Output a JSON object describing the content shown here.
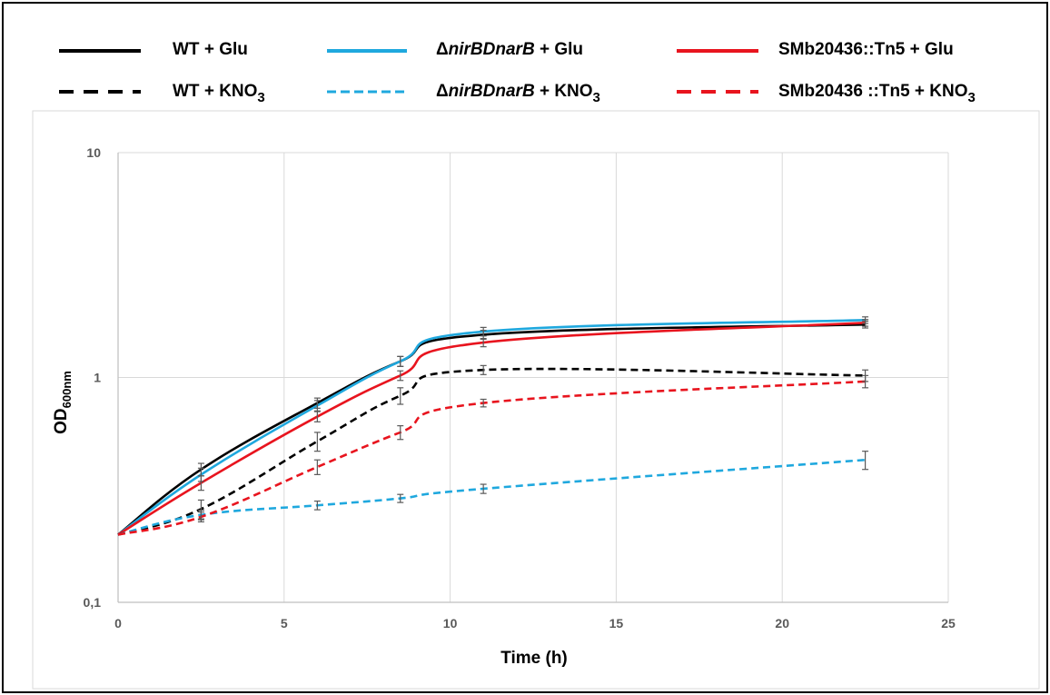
{
  "chart_data": {
    "type": "line",
    "title": "",
    "xlabel": "Time (h)",
    "ylabel": "OD",
    "ylabel_sub": "600nm",
    "x_scale": "linear",
    "y_scale": "log",
    "xlim": [
      0,
      25
    ],
    "ylim": [
      0.1,
      10
    ],
    "x_ticks": [
      0,
      5,
      10,
      15,
      20,
      25
    ],
    "x_tick_labels": [
      "0",
      "5",
      "10",
      "15",
      "20",
      "25"
    ],
    "y_ticks": [
      0.1,
      1,
      10
    ],
    "y_tick_labels": [
      "0,1",
      "1",
      "10"
    ],
    "grid": true,
    "legend_position": "top",
    "legend": [
      {
        "pre": "WT + Glu",
        "ital": "",
        "post": "",
        "sub": "",
        "tail": ""
      },
      {
        "pre": "Δ",
        "ital": "nirBDnarB",
        "post": " + Glu",
        "sub": "",
        "tail": ""
      },
      {
        "pre": "SMb20436::Tn5 + Glu",
        "ital": "",
        "post": "",
        "sub": "",
        "tail": ""
      },
      {
        "pre": "WT + KNO",
        "ital": "",
        "post": "",
        "sub": "3",
        "tail": ""
      },
      {
        "pre": "Δ",
        "ital": "nirBDnarB",
        "post": " + KNO",
        "sub": "3",
        "tail": ""
      },
      {
        "pre": "SMb20436 ::Tn5 + KNO",
        "ital": "",
        "post": "",
        "sub": "3",
        "tail": ""
      }
    ],
    "x": [
      0,
      2.5,
      6,
      8.5,
      11,
      22.5
    ],
    "series": [
      {
        "key": "wt_glu",
        "color": "#000000",
        "dash": "solid",
        "values": [
          0.2,
          0.39,
          0.77,
          1.18,
          1.55,
          1.72
        ],
        "errors": [
          0,
          0.025,
          0.04,
          0.06,
          0.07,
          0.06
        ]
      },
      {
        "key": "nir_glu",
        "color": "#1FA8DE",
        "dash": "solid",
        "values": [
          0.2,
          0.37,
          0.75,
          1.18,
          1.6,
          1.8
        ],
        "errors": [
          0,
          0.025,
          0.04,
          0.06,
          0.07,
          0.06
        ]
      },
      {
        "key": "smb_glu",
        "color": "#E8141E",
        "dash": "solid",
        "values": [
          0.2,
          0.34,
          0.67,
          1.02,
          1.43,
          1.75
        ],
        "errors": [
          0,
          0.025,
          0.035,
          0.05,
          0.06,
          0.06
        ]
      },
      {
        "key": "wt_kno3",
        "color": "#000000",
        "dash": "dashed",
        "values": [
          0.2,
          0.26,
          0.52,
          0.83,
          1.08,
          1.02
        ],
        "errors": [
          0,
          0.025,
          0.05,
          0.07,
          0.05,
          0.06
        ]
      },
      {
        "key": "nir_kno3",
        "color": "#1FA8DE",
        "dash": "dashed",
        "values": [
          0.2,
          0.245,
          0.27,
          0.29,
          0.32,
          0.43
        ],
        "errors": [
          0,
          0.012,
          0.012,
          0.012,
          0.015,
          0.04
        ]
      },
      {
        "key": "smb_kno3",
        "color": "#E8141E",
        "dash": "dashed",
        "values": [
          0.2,
          0.24,
          0.4,
          0.57,
          0.77,
          0.96
        ],
        "errors": [
          0,
          0.012,
          0.03,
          0.04,
          0.03,
          0.06
        ]
      }
    ]
  }
}
